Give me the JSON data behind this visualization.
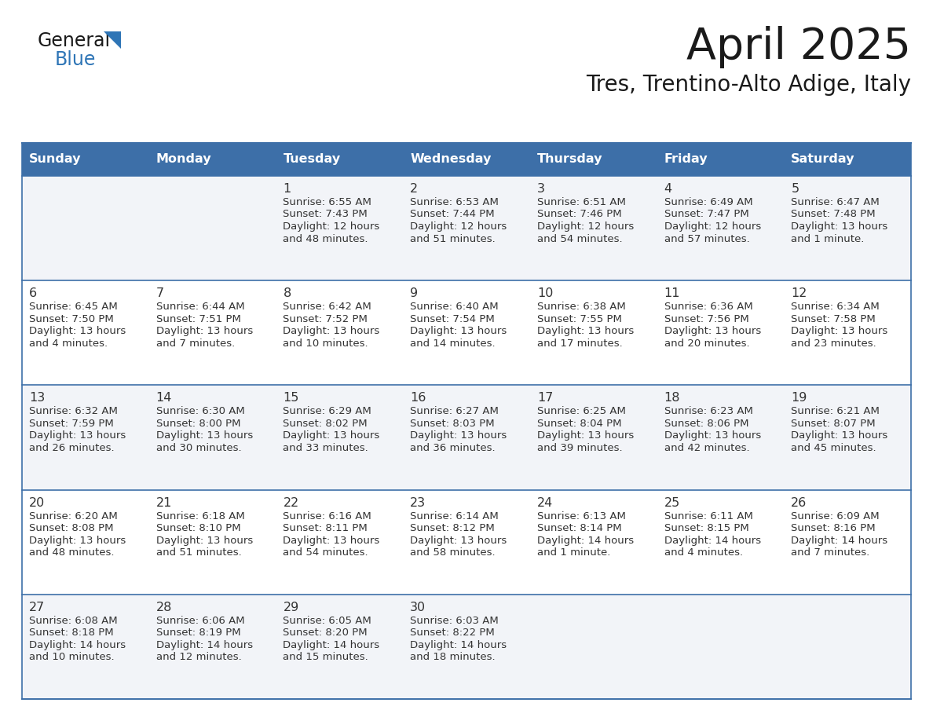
{
  "title": "April 2025",
  "subtitle": "Tres, Trentino-Alto Adige, Italy",
  "days_of_week": [
    "Sunday",
    "Monday",
    "Tuesday",
    "Wednesday",
    "Thursday",
    "Friday",
    "Saturday"
  ],
  "header_bg_color": "#3d6fa8",
  "header_text_color": "#ffffff",
  "odd_row_bg": "#f2f4f8",
  "even_row_bg": "#ffffff",
  "cell_text_color": "#333333",
  "border_color": "#3d6fa8",
  "row_border_color": "#3d6fa8",
  "title_color": "#1a1a1a",
  "subtitle_color": "#1a1a1a",
  "logo_general_color": "#1a1a1a",
  "logo_blue_color": "#2e75b6",
  "logo_triangle_color": "#2e75b6",
  "calendar_data": [
    [
      {
        "day": "",
        "sunrise": "",
        "sunset": "",
        "daylight": ""
      },
      {
        "day": "",
        "sunrise": "",
        "sunset": "",
        "daylight": ""
      },
      {
        "day": "1",
        "sunrise": "6:55 AM",
        "sunset": "7:43 PM",
        "daylight": "12 hours and 48 minutes."
      },
      {
        "day": "2",
        "sunrise": "6:53 AM",
        "sunset": "7:44 PM",
        "daylight": "12 hours and 51 minutes."
      },
      {
        "day": "3",
        "sunrise": "6:51 AM",
        "sunset": "7:46 PM",
        "daylight": "12 hours and 54 minutes."
      },
      {
        "day": "4",
        "sunrise": "6:49 AM",
        "sunset": "7:47 PM",
        "daylight": "12 hours and 57 minutes."
      },
      {
        "day": "5",
        "sunrise": "6:47 AM",
        "sunset": "7:48 PM",
        "daylight": "13 hours and 1 minute."
      }
    ],
    [
      {
        "day": "6",
        "sunrise": "6:45 AM",
        "sunset": "7:50 PM",
        "daylight": "13 hours and 4 minutes."
      },
      {
        "day": "7",
        "sunrise": "6:44 AM",
        "sunset": "7:51 PM",
        "daylight": "13 hours and 7 minutes."
      },
      {
        "day": "8",
        "sunrise": "6:42 AM",
        "sunset": "7:52 PM",
        "daylight": "13 hours and 10 minutes."
      },
      {
        "day": "9",
        "sunrise": "6:40 AM",
        "sunset": "7:54 PM",
        "daylight": "13 hours and 14 minutes."
      },
      {
        "day": "10",
        "sunrise": "6:38 AM",
        "sunset": "7:55 PM",
        "daylight": "13 hours and 17 minutes."
      },
      {
        "day": "11",
        "sunrise": "6:36 AM",
        "sunset": "7:56 PM",
        "daylight": "13 hours and 20 minutes."
      },
      {
        "day": "12",
        "sunrise": "6:34 AM",
        "sunset": "7:58 PM",
        "daylight": "13 hours and 23 minutes."
      }
    ],
    [
      {
        "day": "13",
        "sunrise": "6:32 AM",
        "sunset": "7:59 PM",
        "daylight": "13 hours and 26 minutes."
      },
      {
        "day": "14",
        "sunrise": "6:30 AM",
        "sunset": "8:00 PM",
        "daylight": "13 hours and 30 minutes."
      },
      {
        "day": "15",
        "sunrise": "6:29 AM",
        "sunset": "8:02 PM",
        "daylight": "13 hours and 33 minutes."
      },
      {
        "day": "16",
        "sunrise": "6:27 AM",
        "sunset": "8:03 PM",
        "daylight": "13 hours and 36 minutes."
      },
      {
        "day": "17",
        "sunrise": "6:25 AM",
        "sunset": "8:04 PM",
        "daylight": "13 hours and 39 minutes."
      },
      {
        "day": "18",
        "sunrise": "6:23 AM",
        "sunset": "8:06 PM",
        "daylight": "13 hours and 42 minutes."
      },
      {
        "day": "19",
        "sunrise": "6:21 AM",
        "sunset": "8:07 PM",
        "daylight": "13 hours and 45 minutes."
      }
    ],
    [
      {
        "day": "20",
        "sunrise": "6:20 AM",
        "sunset": "8:08 PM",
        "daylight": "13 hours and 48 minutes."
      },
      {
        "day": "21",
        "sunrise": "6:18 AM",
        "sunset": "8:10 PM",
        "daylight": "13 hours and 51 minutes."
      },
      {
        "day": "22",
        "sunrise": "6:16 AM",
        "sunset": "8:11 PM",
        "daylight": "13 hours and 54 minutes."
      },
      {
        "day": "23",
        "sunrise": "6:14 AM",
        "sunset": "8:12 PM",
        "daylight": "13 hours and 58 minutes."
      },
      {
        "day": "24",
        "sunrise": "6:13 AM",
        "sunset": "8:14 PM",
        "daylight": "14 hours and 1 minute."
      },
      {
        "day": "25",
        "sunrise": "6:11 AM",
        "sunset": "8:15 PM",
        "daylight": "14 hours and 4 minutes."
      },
      {
        "day": "26",
        "sunrise": "6:09 AM",
        "sunset": "8:16 PM",
        "daylight": "14 hours and 7 minutes."
      }
    ],
    [
      {
        "day": "27",
        "sunrise": "6:08 AM",
        "sunset": "8:18 PM",
        "daylight": "14 hours and 10 minutes."
      },
      {
        "day": "28",
        "sunrise": "6:06 AM",
        "sunset": "8:19 PM",
        "daylight": "14 hours and 12 minutes."
      },
      {
        "day": "29",
        "sunrise": "6:05 AM",
        "sunset": "8:20 PM",
        "daylight": "14 hours and 15 minutes."
      },
      {
        "day": "30",
        "sunrise": "6:03 AM",
        "sunset": "8:22 PM",
        "daylight": "14 hours and 18 minutes."
      },
      {
        "day": "",
        "sunrise": "",
        "sunset": "",
        "daylight": ""
      },
      {
        "day": "",
        "sunrise": "",
        "sunset": "",
        "daylight": ""
      },
      {
        "day": "",
        "sunrise": "",
        "sunset": "",
        "daylight": ""
      }
    ]
  ]
}
